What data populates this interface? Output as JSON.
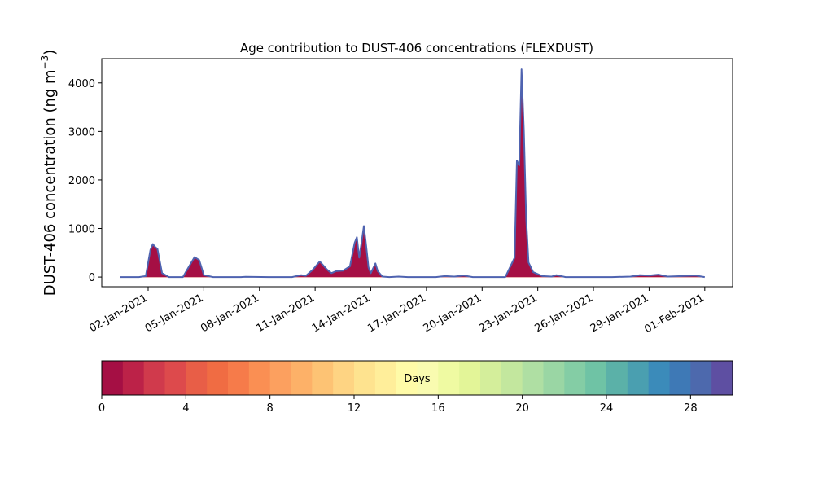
{
  "chart_data": {
    "type": "area",
    "title": "Age contribution to DUST-406 concentrations (FLEXDUST)",
    "ylabel": "DUST-406 concentration (ng m",
    "ylabel_sup": "−3",
    "ylabel_close": ")",
    "xlabel": "",
    "ylim": [
      -200,
      4500
    ],
    "yticks": [
      0,
      1000,
      2000,
      3000,
      4000
    ],
    "xticks": [
      "02-Jan-2021",
      "05-Jan-2021",
      "08-Jan-2021",
      "11-Jan-2021",
      "14-Jan-2021",
      "17-Jan-2021",
      "20-Jan-2021",
      "23-Jan-2021",
      "26-Jan-2021",
      "29-Jan-2021",
      "01-Feb-2021"
    ],
    "xlim": [
      "2020-12-30T12:00",
      "2021-02-02T12:00"
    ],
    "grid": false,
    "total_series": {
      "color": "#4f63b0",
      "points": [
        [
          "2020-12-31T12:00",
          0
        ],
        [
          "2021-01-01T12:00",
          0
        ],
        [
          "2021-01-01T21:00",
          20
        ],
        [
          "2021-01-02T03:00",
          560
        ],
        [
          "2021-01-02T06:00",
          680
        ],
        [
          "2021-01-02T09:00",
          620
        ],
        [
          "2021-01-02T12:00",
          580
        ],
        [
          "2021-01-02T18:00",
          80
        ],
        [
          "2021-01-03T03:00",
          0
        ],
        [
          "2021-01-03T21:00",
          0
        ],
        [
          "2021-01-04T06:00",
          250
        ],
        [
          "2021-01-04T12:00",
          410
        ],
        [
          "2021-01-04T18:00",
          350
        ],
        [
          "2021-01-05T00:00",
          40
        ],
        [
          "2021-01-05T12:00",
          0
        ],
        [
          "2021-01-07T00:00",
          0
        ],
        [
          "2021-01-07T06:00",
          5
        ],
        [
          "2021-01-08T12:00",
          0
        ],
        [
          "2021-01-09T18:00",
          0
        ],
        [
          "2021-01-10T06:00",
          40
        ],
        [
          "2021-01-10T12:00",
          25
        ],
        [
          "2021-01-10T21:00",
          150
        ],
        [
          "2021-01-11T06:00",
          320
        ],
        [
          "2021-01-11T15:00",
          160
        ],
        [
          "2021-01-11T21:00",
          80
        ],
        [
          "2021-01-12T03:00",
          120
        ],
        [
          "2021-01-12T12:00",
          130
        ],
        [
          "2021-01-12T21:00",
          220
        ],
        [
          "2021-01-13T03:00",
          700
        ],
        [
          "2021-01-13T06:00",
          820
        ],
        [
          "2021-01-13T09:00",
          400
        ],
        [
          "2021-01-13T12:00",
          700
        ],
        [
          "2021-01-13T15:00",
          1050
        ],
        [
          "2021-01-13T18:00",
          650
        ],
        [
          "2021-01-13T21:00",
          200
        ],
        [
          "2021-01-14T00:00",
          80
        ],
        [
          "2021-01-14T06:00",
          280
        ],
        [
          "2021-01-14T09:00",
          120
        ],
        [
          "2021-01-14T15:00",
          10
        ],
        [
          "2021-01-15T00:00",
          0
        ],
        [
          "2021-01-15T12:00",
          10
        ],
        [
          "2021-01-16T00:00",
          0
        ],
        [
          "2021-01-17T12:00",
          0
        ],
        [
          "2021-01-18T00:00",
          20
        ],
        [
          "2021-01-18T12:00",
          10
        ],
        [
          "2021-01-19T00:00",
          30
        ],
        [
          "2021-01-19T12:00",
          0
        ],
        [
          "2021-01-20T12:00",
          0
        ],
        [
          "2021-01-21T06:00",
          0
        ],
        [
          "2021-01-21T18:00",
          400
        ],
        [
          "2021-01-21T21:00",
          2400
        ],
        [
          "2021-01-22T00:00",
          2300
        ],
        [
          "2021-01-22T03:00",
          4280
        ],
        [
          "2021-01-22T06:00",
          3000
        ],
        [
          "2021-01-22T09:00",
          1200
        ],
        [
          "2021-01-22T12:00",
          300
        ],
        [
          "2021-01-22T18:00",
          100
        ],
        [
          "2021-01-23T06:00",
          20
        ],
        [
          "2021-01-23T18:00",
          10
        ],
        [
          "2021-01-24T00:00",
          40
        ],
        [
          "2021-01-24T12:00",
          0
        ],
        [
          "2021-01-27T00:00",
          0
        ],
        [
          "2021-01-28T00:00",
          10
        ],
        [
          "2021-01-28T12:00",
          40
        ],
        [
          "2021-01-29T00:00",
          30
        ],
        [
          "2021-01-29T12:00",
          50
        ],
        [
          "2021-01-30T00:00",
          10
        ],
        [
          "2021-01-31T12:00",
          30
        ],
        [
          "2021-02-01T00:00",
          0
        ]
      ]
    },
    "colorbar": {
      "label": "Days",
      "min": 0,
      "max": 30,
      "ticks": [
        "0",
        "4",
        "8",
        "12",
        "16",
        "20",
        "24",
        "28"
      ],
      "tick_values": [
        0,
        4,
        8,
        12,
        16,
        20,
        24,
        28
      ],
      "colors": [
        "#a50f44",
        "#bc2248",
        "#d03a4c",
        "#dd4a4c",
        "#e85e47",
        "#f06c43",
        "#f67b4a",
        "#fa8f53",
        "#fca05f",
        "#fdb168",
        "#fdc374",
        "#fed483",
        "#fee38f",
        "#ffee9a",
        "#fffba8",
        "#f9fbb0",
        "#effaa2",
        "#e3f598",
        "#d4ee9b",
        "#c3e79e",
        "#afdfa3",
        "#9ad6a4",
        "#84cda5",
        "#6fc3a5",
        "#5bb1a8",
        "#4a9fb0",
        "#3b8bba",
        "#3e79b6",
        "#4d69ad",
        "#5e4fa2"
      ]
    }
  }
}
